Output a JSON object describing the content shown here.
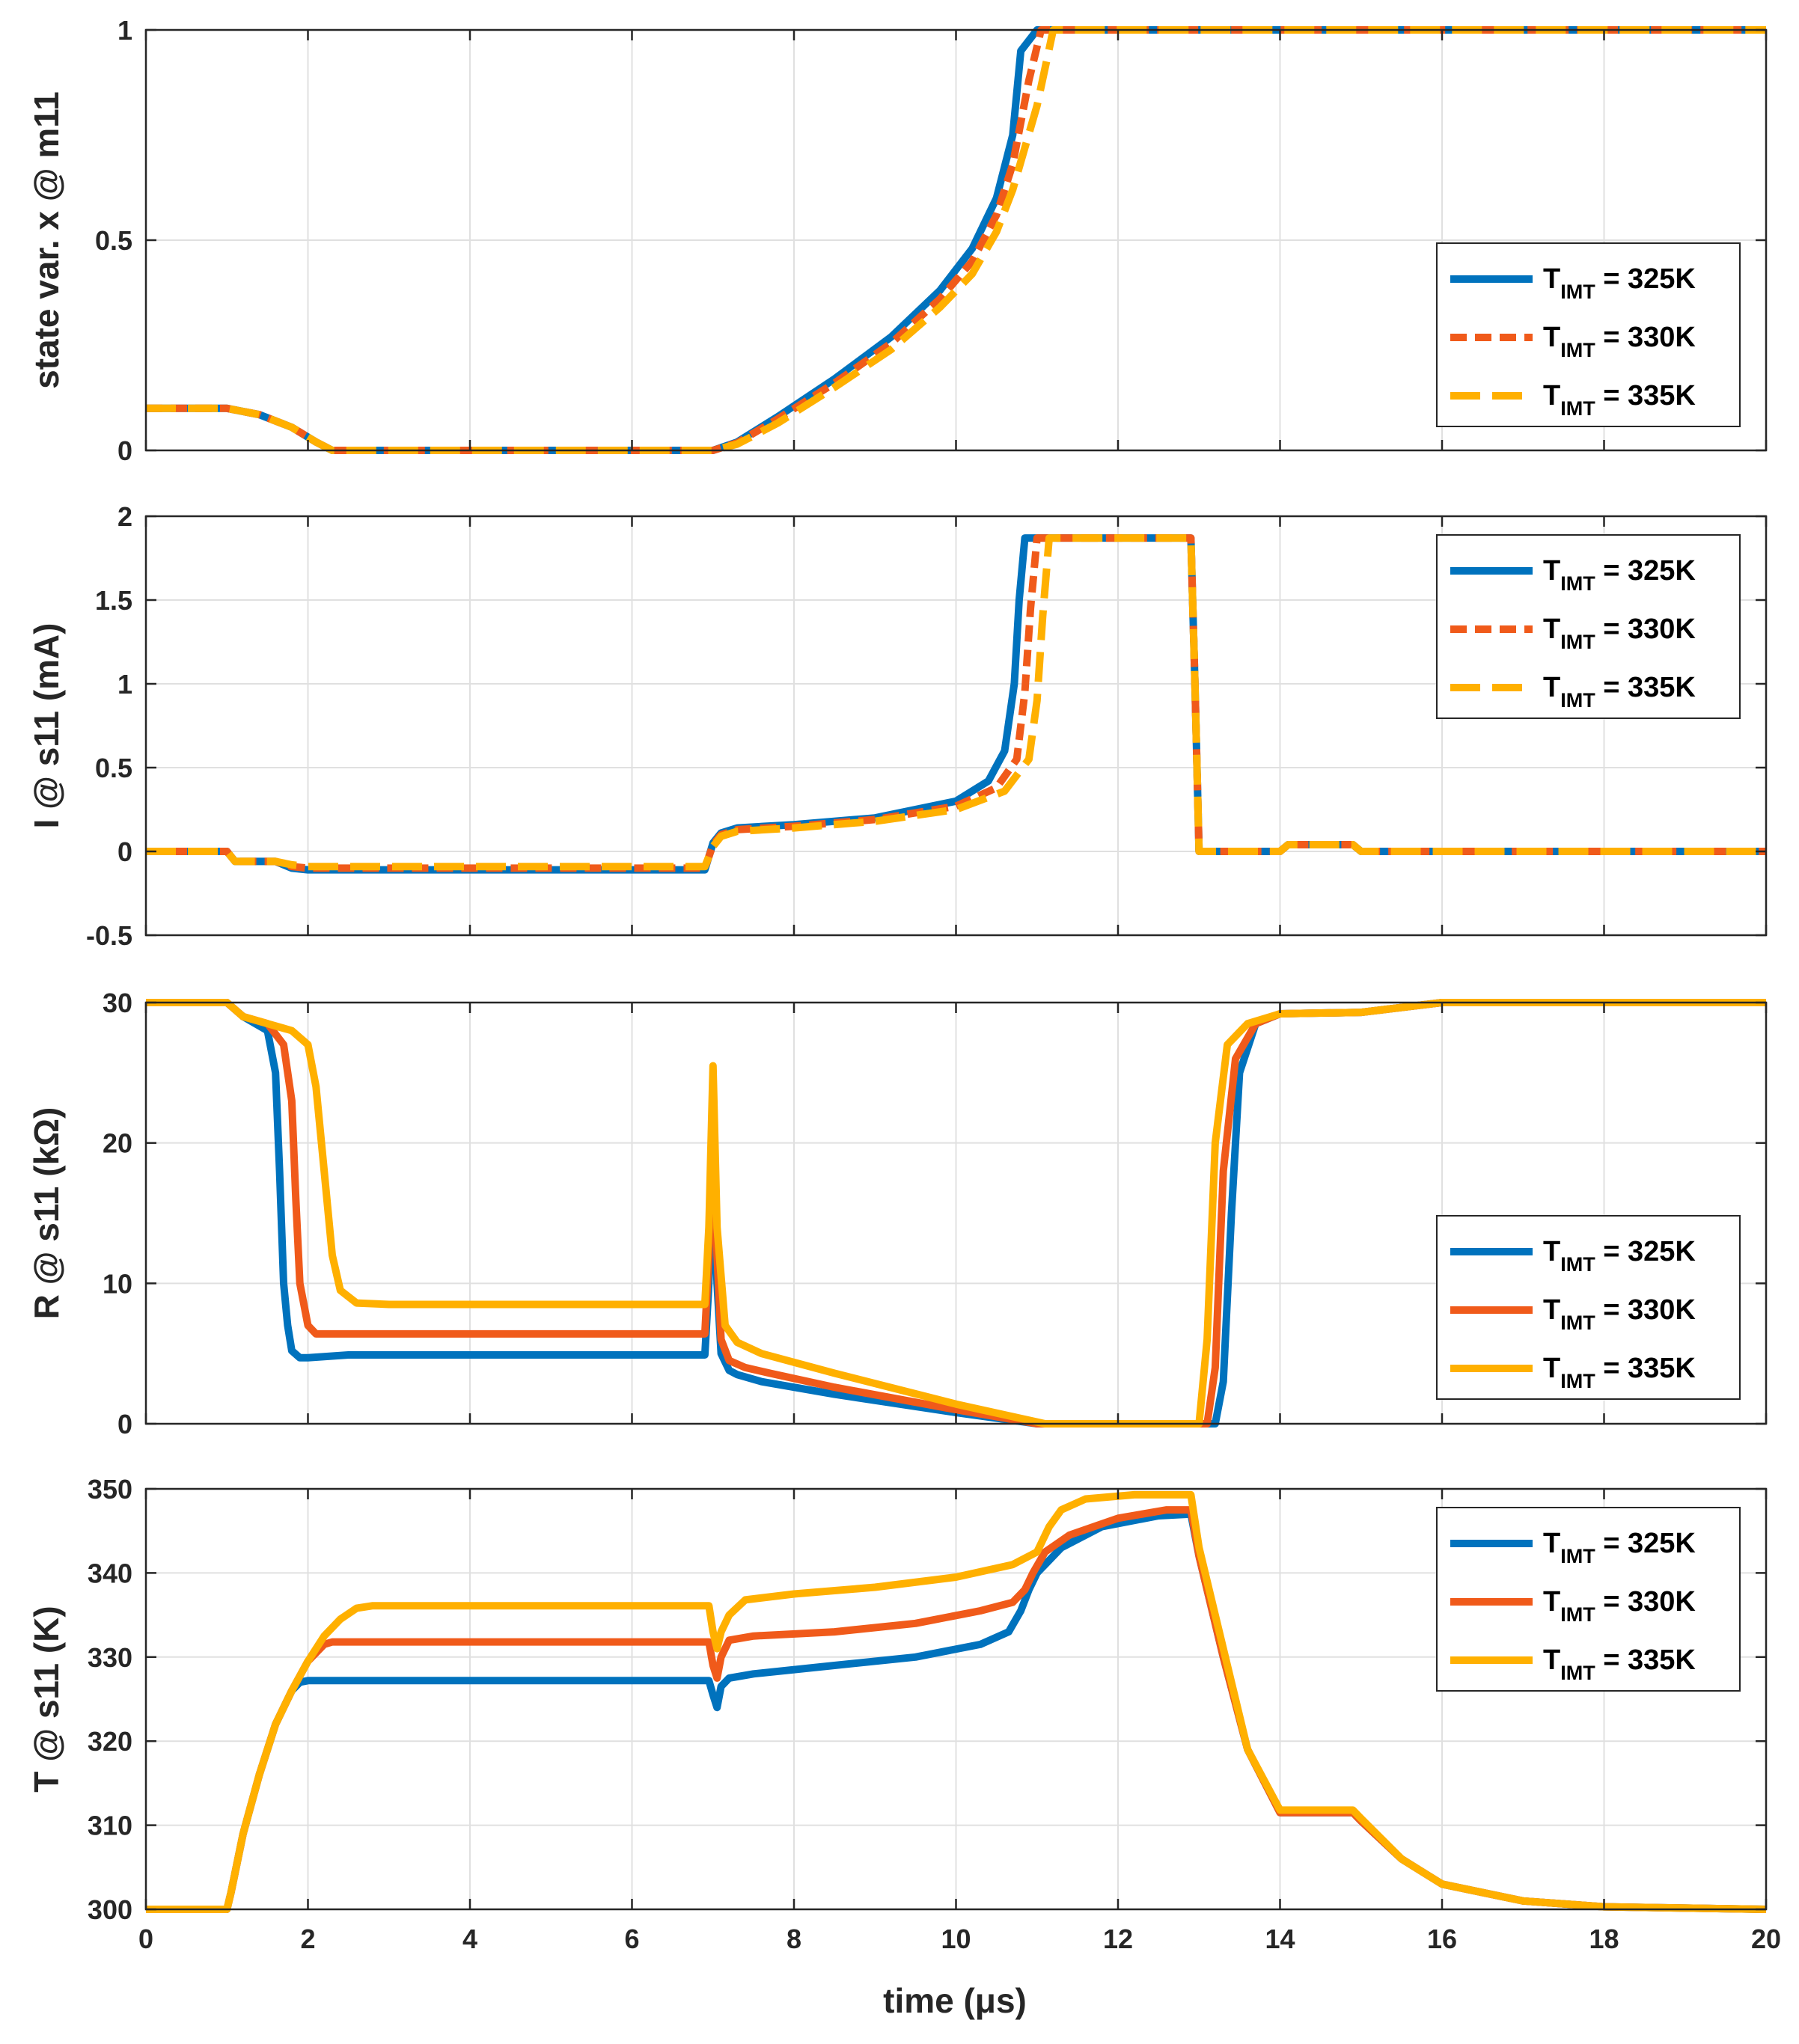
{
  "colors": {
    "blue": "#0072BD",
    "orange": "#F05A1A",
    "yellow": "#FFB000",
    "axis": "#262626",
    "grid": "#e0e0e0"
  },
  "chart_data": [
    {
      "type": "line",
      "ylabel": "state var. x @ m11",
      "xlabel": "",
      "xlim": [
        0,
        20
      ],
      "ylim": [
        0,
        1
      ],
      "xticks": [
        0,
        2,
        4,
        6,
        8,
        10,
        12,
        14,
        16,
        18,
        20
      ],
      "yticks": [
        0,
        0.5,
        1
      ],
      "yticklabels": [
        "0",
        "0.5",
        "1"
      ],
      "grid": true,
      "legend_position": "right",
      "series": [
        {
          "name": "T_IMT = 325K",
          "legend_main": "T",
          "legend_sub": "IMT",
          "legend_suffix": " = 325K",
          "color": "#0072BD",
          "style": "solid",
          "x": [
            0,
            1,
            1.4,
            1.8,
            2.1,
            2.3,
            7,
            7.3,
            7.8,
            8.5,
            9.2,
            9.8,
            10.2,
            10.5,
            10.7,
            10.8,
            11,
            20
          ],
          "y": [
            0.1,
            0.1,
            0.085,
            0.055,
            0.02,
            0,
            0,
            0.02,
            0.08,
            0.17,
            0.27,
            0.38,
            0.48,
            0.6,
            0.75,
            0.95,
            1,
            1
          ]
        },
        {
          "name": "T_IMT = 330K",
          "legend_main": "T",
          "legend_sub": "IMT",
          "legend_suffix": " = 330K",
          "color": "#F05A1A",
          "style": "dash",
          "x": [
            0,
            1,
            1.4,
            1.8,
            2.1,
            2.3,
            7,
            7.3,
            7.8,
            8.5,
            9.2,
            9.8,
            10.2,
            10.5,
            10.7,
            10.9,
            11.05,
            20
          ],
          "y": [
            0.1,
            0.1,
            0.085,
            0.055,
            0.02,
            0,
            0,
            0.018,
            0.075,
            0.16,
            0.255,
            0.36,
            0.45,
            0.56,
            0.68,
            0.88,
            1,
            1
          ]
        },
        {
          "name": "T_IMT = 335K",
          "legend_main": "T",
          "legend_sub": "IMT",
          "legend_suffix": " = 335K",
          "color": "#FFB000",
          "style": "longdash",
          "x": [
            0,
            1,
            1.4,
            1.8,
            2.1,
            2.3,
            7,
            7.3,
            7.8,
            8.5,
            9.2,
            9.8,
            10.2,
            10.5,
            10.7,
            11,
            11.2,
            20
          ],
          "y": [
            0.1,
            0.1,
            0.085,
            0.055,
            0.02,
            0,
            0,
            0.015,
            0.065,
            0.15,
            0.24,
            0.34,
            0.42,
            0.52,
            0.62,
            0.82,
            1,
            1
          ]
        }
      ]
    },
    {
      "type": "line",
      "ylabel": "I @ s11 (mA)",
      "xlabel": "",
      "xlim": [
        0,
        20
      ],
      "ylim": [
        -0.5,
        2
      ],
      "xticks": [
        0,
        2,
        4,
        6,
        8,
        10,
        12,
        14,
        16,
        18,
        20
      ],
      "yticks": [
        -0.5,
        0,
        0.5,
        1,
        1.5,
        2
      ],
      "yticklabels": [
        "-0.5",
        "0",
        "0.5",
        "1",
        "1.5",
        "2"
      ],
      "grid": true,
      "legend_position": "top-right",
      "series": [
        {
          "name": "T_IMT = 325K",
          "legend_main": "T",
          "legend_sub": "IMT",
          "legend_suffix": " = 325K",
          "color": "#0072BD",
          "style": "solid",
          "x": [
            0,
            1,
            1.1,
            1.6,
            1.8,
            2,
            6.9,
            7,
            7.1,
            7.3,
            8,
            9,
            10,
            10.4,
            10.6,
            10.72,
            10.78,
            10.85,
            12.9,
            12.95,
            13,
            14,
            14.1,
            14.9,
            15,
            20
          ],
          "y": [
            0,
            0,
            -0.06,
            -0.06,
            -0.1,
            -0.11,
            -0.11,
            0.05,
            0.11,
            0.14,
            0.16,
            0.2,
            0.3,
            0.42,
            0.6,
            1.0,
            1.5,
            1.87,
            1.87,
            1.0,
            0,
            0,
            0.04,
            0.04,
            0,
            0
          ]
        },
        {
          "name": "T_IMT = 330K",
          "legend_main": "T",
          "legend_sub": "IMT",
          "legend_suffix": " = 330K",
          "color": "#F05A1A",
          "style": "dash",
          "x": [
            0,
            1,
            1.1,
            1.6,
            1.8,
            2,
            6.9,
            7,
            7.1,
            7.3,
            8,
            9,
            10,
            10.5,
            10.75,
            10.85,
            10.92,
            11,
            12.9,
            12.95,
            13,
            14,
            14.1,
            14.9,
            15,
            20
          ],
          "y": [
            0,
            0,
            -0.06,
            -0.06,
            -0.09,
            -0.1,
            -0.1,
            0.04,
            0.1,
            0.13,
            0.15,
            0.19,
            0.27,
            0.38,
            0.55,
            0.95,
            1.45,
            1.87,
            1.87,
            1.0,
            0,
            0,
            0.04,
            0.04,
            0,
            0
          ]
        },
        {
          "name": "T_IMT = 335K",
          "legend_main": "T",
          "legend_sub": "IMT",
          "legend_suffix": " = 335K",
          "color": "#FFB000",
          "style": "longdash",
          "x": [
            0,
            1,
            1.1,
            1.6,
            1.8,
            2,
            6.9,
            7,
            7.1,
            7.3,
            8,
            9,
            10,
            10.6,
            10.9,
            11,
            11.07,
            11.15,
            12.9,
            12.95,
            13,
            14,
            14.1,
            14.9,
            15,
            20
          ],
          "y": [
            0,
            0,
            -0.06,
            -0.06,
            -0.08,
            -0.09,
            -0.09,
            0.03,
            0.09,
            0.12,
            0.14,
            0.18,
            0.25,
            0.36,
            0.55,
            0.9,
            1.4,
            1.87,
            1.87,
            1.0,
            0,
            0,
            0.04,
            0.04,
            0,
            0
          ]
        }
      ]
    },
    {
      "type": "line",
      "ylabel": "R @ s11 (kΩ)",
      "xlabel": "",
      "xlim": [
        0,
        20
      ],
      "ylim": [
        0,
        30
      ],
      "xticks": [
        0,
        2,
        4,
        6,
        8,
        10,
        12,
        14,
        16,
        18,
        20
      ],
      "yticks": [
        0,
        10,
        20,
        30
      ],
      "yticklabels": [
        "0",
        "10",
        "20",
        "30"
      ],
      "grid": true,
      "legend_position": "bottom-right",
      "series": [
        {
          "name": "T_IMT = 325K",
          "legend_main": "T",
          "legend_sub": "IMT",
          "legend_suffix": " = 325K",
          "color": "#0072BD",
          "style": "solid",
          "x": [
            0,
            1,
            1.2,
            1.5,
            1.6,
            1.65,
            1.7,
            1.75,
            1.8,
            1.9,
            2,
            2.5,
            6.9,
            6.95,
            7,
            7.05,
            7.1,
            7.2,
            7.3,
            7.6,
            8.5,
            10,
            11,
            12.9,
            13.2,
            13.3,
            13.4,
            13.5,
            13.7,
            14,
            15,
            16,
            20
          ],
          "y": [
            30,
            30,
            29,
            28,
            25,
            18,
            10,
            7,
            5.2,
            4.7,
            4.7,
            4.9,
            4.9,
            10,
            19,
            10,
            5,
            3.8,
            3.5,
            3,
            2.1,
            0.8,
            0,
            0,
            0,
            3,
            15,
            25,
            28.5,
            29.2,
            29.3,
            30,
            30
          ]
        },
        {
          "name": "T_IMT = 330K",
          "legend_main": "T",
          "legend_sub": "IMT",
          "legend_suffix": " = 330K",
          "color": "#F05A1A",
          "style": "solid",
          "x": [
            0,
            1,
            1.2,
            1.5,
            1.7,
            1.8,
            1.85,
            1.9,
            2,
            2.1,
            2.3,
            6.9,
            6.95,
            7,
            7.05,
            7.1,
            7.2,
            7.4,
            7.7,
            8.5,
            10,
            11,
            12.9,
            13.1,
            13.2,
            13.3,
            13.45,
            13.7,
            14,
            15,
            16,
            20
          ],
          "y": [
            30,
            30,
            29,
            28.5,
            27,
            23,
            16,
            10,
            7,
            6.4,
            6.4,
            6.4,
            12,
            22,
            12,
            6,
            4.5,
            4,
            3.6,
            2.6,
            1.0,
            0,
            0,
            0,
            4,
            18,
            26,
            28.5,
            29.2,
            29.3,
            30,
            30
          ]
        },
        {
          "name": "T_IMT = 335K",
          "legend_main": "T",
          "legend_sub": "IMT",
          "legend_suffix": " = 335K",
          "color": "#FFB000",
          "style": "solid",
          "x": [
            0,
            1,
            1.2,
            1.5,
            1.8,
            2,
            2.1,
            2.2,
            2.3,
            2.4,
            2.6,
            3,
            6.9,
            6.95,
            7,
            7.05,
            7.15,
            7.3,
            7.6,
            8.5,
            10,
            11.1,
            12.9,
            13,
            13.1,
            13.2,
            13.35,
            13.6,
            14,
            15,
            16,
            20
          ],
          "y": [
            30,
            30,
            29,
            28.5,
            28,
            27,
            24,
            18,
            12,
            9.5,
            8.6,
            8.5,
            8.5,
            14,
            25.5,
            14,
            7,
            5.8,
            5,
            3.6,
            1.4,
            0,
            0,
            0,
            6,
            20,
            27,
            28.5,
            29.2,
            29.3,
            30,
            30
          ]
        }
      ]
    },
    {
      "type": "line",
      "ylabel": "T @ s11 (K)",
      "xlabel": "time (μs)",
      "xlim": [
        0,
        20
      ],
      "ylim": [
        300,
        350
      ],
      "xticks": [
        0,
        2,
        4,
        6,
        8,
        10,
        12,
        14,
        16,
        18,
        20
      ],
      "xticklabels": [
        "0",
        "2",
        "4",
        "6",
        "8",
        "10",
        "12",
        "14",
        "16",
        "18",
        "20"
      ],
      "yticks": [
        300,
        310,
        320,
        330,
        340,
        350
      ],
      "yticklabels": [
        "300",
        "310",
        "320",
        "330",
        "340",
        "350"
      ],
      "grid": true,
      "legend_position": "top-right",
      "series": [
        {
          "name": "T_IMT = 325K",
          "legend_main": "T",
          "legend_sub": "IMT",
          "legend_suffix": " = 325K",
          "color": "#0072BD",
          "style": "solid",
          "x": [
            0,
            1,
            1.05,
            1.2,
            1.4,
            1.6,
            1.8,
            1.9,
            2,
            6.95,
            7,
            7.05,
            7.1,
            7.2,
            7.5,
            8.5,
            9.5,
            10.3,
            10.65,
            10.8,
            10.9,
            11,
            11.3,
            11.8,
            12.5,
            12.9,
            13,
            13.3,
            13.6,
            14,
            14.9,
            15,
            15.5,
            16,
            17,
            18,
            20
          ],
          "y": [
            300,
            300,
            302,
            309,
            316,
            322,
            326,
            327,
            327.2,
            327.2,
            325.5,
            324,
            326.5,
            327.5,
            328,
            329,
            330,
            331.5,
            333,
            335.5,
            338,
            340,
            343,
            345.5,
            346.8,
            347,
            342,
            330,
            319,
            311.5,
            311.5,
            310.5,
            306,
            303,
            301,
            300.3,
            300
          ]
        },
        {
          "name": "T_IMT = 330K",
          "legend_main": "T",
          "legend_sub": "IMT",
          "legend_suffix": " = 330K",
          "color": "#F05A1A",
          "style": "solid",
          "x": [
            0,
            1,
            1.05,
            1.2,
            1.4,
            1.6,
            1.8,
            2,
            2.2,
            2.3,
            6.95,
            7,
            7.05,
            7.1,
            7.2,
            7.5,
            8.5,
            9.5,
            10.3,
            10.7,
            10.85,
            10.95,
            11.1,
            11.4,
            12,
            12.6,
            12.9,
            13,
            13.3,
            13.6,
            14,
            14.9,
            15,
            15.5,
            16,
            17,
            18,
            20
          ],
          "y": [
            300,
            300,
            302,
            309,
            316,
            322,
            326,
            329.5,
            331.5,
            331.8,
            331.8,
            329,
            327.5,
            330,
            332,
            332.5,
            333,
            334,
            335.5,
            336.5,
            338,
            340,
            342.5,
            344.5,
            346.5,
            347.5,
            347.5,
            342,
            330,
            319,
            311.5,
            311.5,
            310.5,
            306,
            303,
            301,
            300.3,
            300
          ]
        },
        {
          "name": "T_IMT = 335K",
          "legend_main": "T",
          "legend_sub": "IMT",
          "legend_suffix": " = 335K",
          "color": "#FFB000",
          "style": "solid",
          "x": [
            0,
            1,
            1.05,
            1.2,
            1.4,
            1.6,
            1.8,
            2,
            2.2,
            2.4,
            2.6,
            2.8,
            6.95,
            7,
            7.05,
            7.1,
            7.2,
            7.4,
            8,
            9,
            10,
            10.7,
            11,
            11.15,
            11.3,
            11.6,
            12.2,
            12.9,
            13,
            13.3,
            13.6,
            14,
            14.9,
            15,
            15.5,
            16,
            17,
            18,
            20
          ],
          "y": [
            300,
            300,
            302,
            309,
            316,
            322,
            326,
            329.5,
            332.5,
            334.5,
            335.8,
            336.1,
            336.1,
            333,
            331,
            333,
            335,
            336.8,
            337.5,
            338.3,
            339.5,
            341,
            342.5,
            345.5,
            347.5,
            348.8,
            349.3,
            349.3,
            343,
            331,
            319,
            311.8,
            311.8,
            310.8,
            306,
            303,
            301,
            300.3,
            300
          ]
        }
      ]
    }
  ]
}
